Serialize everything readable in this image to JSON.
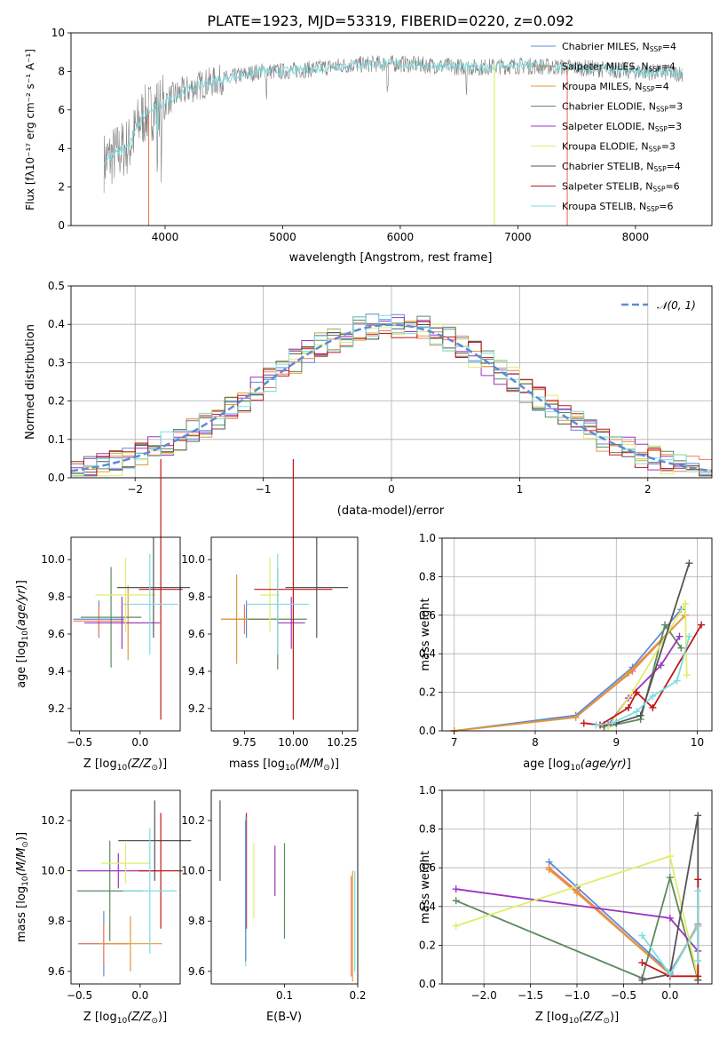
{
  "figure_title": "PLATE=1923, MJD=53319, FIBERID=0220, z=0.092",
  "colors": {
    "Chabrier MILES": "#5b8bd6",
    "Salpeter MILES": "#f07a5a",
    "Kroupa MILES": "#e09a3a",
    "Chabrier ELODIE": "#5e8a5e",
    "Salpeter ELODIE": "#9b34c0",
    "Kroupa ELODIE": "#e2ec6a",
    "Chabrier STELIB": "#555555",
    "Salpeter STELIB": "#c01818",
    "Kroupa STELIB": "#7edde0"
  },
  "chart_data": [
    {
      "id": "spectrum",
      "type": "line",
      "xlabel": "wavelength [Angstrom, rest frame]",
      "ylabel": "Flux [f_λ10^-17 erg cm^-2 s^-1 A^-1]",
      "xlim": [
        3200,
        8650
      ],
      "ylim": [
        0,
        10
      ],
      "xticks": [
        4000,
        5000,
        6000,
        7000,
        8000
      ],
      "yticks": [
        0,
        2,
        4,
        6,
        8,
        10
      ],
      "continuum": [
        [
          3480,
          3.3
        ],
        [
          3600,
          3.8
        ],
        [
          3700,
          4.2
        ],
        [
          3800,
          5.6
        ],
        [
          3900,
          6.0
        ],
        [
          4000,
          6.4
        ],
        [
          4100,
          6.8
        ],
        [
          4300,
          7.3
        ],
        [
          4500,
          7.6
        ],
        [
          4800,
          8.0
        ],
        [
          5000,
          8.0
        ],
        [
          5200,
          8.1
        ],
        [
          5500,
          8.3
        ],
        [
          5800,
          8.4
        ],
        [
          6000,
          8.4
        ],
        [
          6300,
          8.3
        ],
        [
          6600,
          8.2
        ],
        [
          7000,
          8.3
        ],
        [
          7500,
          8.2
        ],
        [
          8000,
          8.0
        ],
        [
          8400,
          7.9
        ]
      ],
      "legend": [
        {
          "name": "Chabrier MILES, N_SSP=4",
          "label_main": "Chabrier MILES, N",
          "sub": "SSP",
          "post": "=4"
        },
        {
          "name": "Salpeter MILES, N_SSP=4",
          "label_main": "Salpeter MILES, N",
          "sub": "SSP",
          "post": "=4"
        },
        {
          "name": "Kroupa MILES, N_SSP=4",
          "label_main": "Kroupa MILES, N",
          "sub": "SSP",
          "post": "=4"
        },
        {
          "name": "Chabrier ELODIE, N_SSP=3",
          "label_main": "Chabrier ELODIE, N",
          "sub": "SSP",
          "post": "=3"
        },
        {
          "name": "Salpeter ELODIE, N_SSP=3",
          "label_main": "Salpeter ELODIE, N",
          "sub": "SSP",
          "post": "=3"
        },
        {
          "name": "Kroupa ELODIE, N_SSP=3",
          "label_main": "Kroupa ELODIE, N",
          "sub": "SSP",
          "post": "=3"
        },
        {
          "name": "Chabrier STELIB, N_SSP=4",
          "label_main": "Chabrier STELIB, N",
          "sub": "SSP",
          "post": "=4"
        },
        {
          "name": "Salpeter STELIB, N_SSP=6",
          "label_main": "Salpeter STELIB, N",
          "sub": "SSP",
          "post": "=6"
        },
        {
          "name": "Kroupa STELIB, N_SSP=6",
          "label_main": "Kroupa STELIB, N",
          "sub": "SSP",
          "post": "=6"
        }
      ]
    },
    {
      "id": "residuals",
      "type": "bar",
      "xlabel": "(data-model)/error",
      "ylabel": "Normed distribution",
      "xlim": [
        -2.5,
        2.5
      ],
      "ylim": [
        0,
        0.5
      ],
      "xticks": [
        -2,
        -1,
        0,
        1,
        2
      ],
      "yticks": [
        0.0,
        0.1,
        0.2,
        0.3,
        0.4,
        0.5
      ],
      "bin_width": 0.1,
      "gaussian_legend": "N(0,1)"
    },
    {
      "id": "age_vs_Z",
      "type": "scatter",
      "xlabel": "Z [log10(Z/Z_sun)]",
      "ylabel": "age [log10(age/yr)]",
      "xlim": [
        -0.57,
        0.33
      ],
      "ylim": [
        9.08,
        10.12
      ],
      "xticks": [
        -0.5,
        0.0
      ],
      "yticks": [
        9.2,
        9.4,
        9.6,
        9.8,
        10.0
      ],
      "points": [
        {
          "model": "Chabrier MILES",
          "x": -0.34,
          "y": 9.68,
          "xerr": 0.21,
          "yerr": 0.1
        },
        {
          "model": "Salpeter MILES",
          "x": -0.34,
          "y": 9.67,
          "xerr": 0.21,
          "yerr": 0.08
        },
        {
          "model": "Kroupa MILES",
          "x": -0.1,
          "y": 9.66,
          "xerr": 0.27,
          "yerr": 0.2
        },
        {
          "model": "Chabrier ELODIE",
          "x": -0.24,
          "y": 9.69,
          "xerr": 0.25,
          "yerr": 0.27
        },
        {
          "model": "Salpeter ELODIE",
          "x": -0.15,
          "y": 9.66,
          "xerr": 0.31,
          "yerr": 0.14
        },
        {
          "model": "Kroupa ELODIE",
          "x": -0.12,
          "y": 9.81,
          "xerr": 0.25,
          "yerr": 0.2
        },
        {
          "model": "Chabrier STELIB",
          "x": 0.11,
          "y": 9.85,
          "xerr": 0.3,
          "yerr": 0.27
        },
        {
          "model": "Salpeter STELIB",
          "x": 0.17,
          "y": 9.84,
          "xerr": 0.18,
          "yerr": 0.7
        },
        {
          "model": "Kroupa STELIB",
          "x": 0.08,
          "y": 9.76,
          "xerr": 0.23,
          "yerr": 0.27
        }
      ]
    },
    {
      "id": "age_vs_mass",
      "type": "scatter",
      "xlabel": "mass [log10(M/M_sun)]",
      "ylabel": "",
      "xlim": [
        9.58,
        10.33
      ],
      "ylim": [
        9.08,
        10.12
      ],
      "xticks": [
        9.75,
        10.0,
        10.25
      ],
      "yticks": [
        9.2,
        9.4,
        9.6,
        9.8,
        10.0
      ],
      "points": [
        {
          "model": "Chabrier MILES",
          "x": 9.76,
          "y": 9.68,
          "xerr": 0.07,
          "yerr": 0.1
        },
        {
          "model": "Salpeter MILES",
          "x": 9.75,
          "y": 9.68,
          "xerr": 0.12,
          "yerr": 0.08
        },
        {
          "model": "Kroupa MILES",
          "x": 9.71,
          "y": 9.68,
          "xerr": 0.08,
          "yerr": 0.24
        },
        {
          "model": "Chabrier ELODIE",
          "x": 9.92,
          "y": 9.68,
          "xerr": 0.15,
          "yerr": 0.27
        },
        {
          "model": "Salpeter ELODIE",
          "x": 9.99,
          "y": 9.66,
          "xerr": 0.07,
          "yerr": 0.14
        },
        {
          "model": "Kroupa ELODIE",
          "x": 9.88,
          "y": 9.81,
          "xerr": 0.05,
          "yerr": 0.2
        },
        {
          "model": "Chabrier STELIB",
          "x": 10.12,
          "y": 9.85,
          "xerr": 0.16,
          "yerr": 0.27
        },
        {
          "model": "Salpeter STELIB",
          "x": 10.0,
          "y": 9.84,
          "xerr": 0.2,
          "yerr": 0.7
        },
        {
          "model": "Kroupa STELIB",
          "x": 9.92,
          "y": 9.76,
          "xerr": 0.16,
          "yerr": 0.27
        }
      ]
    },
    {
      "id": "weight_vs_age",
      "type": "line",
      "xlabel": "age [log10(age/yr)]",
      "ylabel": "mass weight",
      "xlim": [
        6.85,
        10.18
      ],
      "ylim": [
        0,
        1
      ],
      "xticks": [
        7,
        8,
        9,
        10
      ],
      "yticks": [
        0.0,
        0.2,
        0.4,
        0.6,
        0.8,
        1.0
      ],
      "series": [
        {
          "model": "Chabrier MILES",
          "x": [
            7.0,
            8.5,
            9.2,
            9.8
          ],
          "y": [
            0.0,
            0.08,
            0.33,
            0.63
          ]
        },
        {
          "model": "Salpeter MILES",
          "x": [
            7.0,
            8.5,
            9.2,
            9.85
          ],
          "y": [
            0.0,
            0.07,
            0.31,
            0.6
          ]
        },
        {
          "model": "Kroupa MILES",
          "x": [
            7.0,
            8.5,
            9.15,
            9.85
          ],
          "y": [
            0.0,
            0.07,
            0.3,
            0.6
          ]
        },
        {
          "model": "Chabrier ELODIE",
          "x": [
            8.85,
            9.3,
            9.6,
            9.8
          ],
          "y": [
            0.02,
            0.06,
            0.55,
            0.43
          ]
        },
        {
          "model": "Salpeter ELODIE",
          "x": [
            8.9,
            9.15,
            9.55,
            9.78
          ],
          "y": [
            0.03,
            0.17,
            0.34,
            0.49
          ]
        },
        {
          "model": "Kroupa ELODIE",
          "x": [
            8.9,
            9.2,
            9.85,
            9.87
          ],
          "y": [
            0.02,
            0.2,
            0.66,
            0.29
          ]
        },
        {
          "model": "Chabrier STELIB",
          "x": [
            8.85,
            9.0,
            9.3,
            9.9
          ],
          "y": [
            0.03,
            0.04,
            0.08,
            0.87
          ]
        },
        {
          "model": "Salpeter STELIB",
          "x": [
            8.6,
            8.8,
            9.15,
            9.25,
            9.45,
            10.05
          ],
          "y": [
            0.04,
            0.03,
            0.12,
            0.2,
            0.12,
            0.55
          ]
        },
        {
          "model": "Kroupa STELIB",
          "x": [
            8.75,
            8.95,
            9.25,
            9.45,
            9.75,
            9.9
          ],
          "y": [
            0.03,
            0.04,
            0.1,
            0.18,
            0.26,
            0.49
          ]
        }
      ]
    },
    {
      "id": "mass_vs_Z",
      "type": "scatter",
      "xlabel": "Z [log10(Z/Z_sun)]",
      "ylabel": "mass [log10(M/M_sun)]",
      "xlim": [
        -0.57,
        0.33
      ],
      "ylim": [
        9.55,
        10.32
      ],
      "xticks": [
        -0.5,
        0.0
      ],
      "yticks": [
        9.6,
        9.8,
        10.0,
        10.2
      ],
      "points": [
        {
          "model": "Chabrier MILES",
          "x": -0.3,
          "y": 9.71,
          "xerr": 0.21,
          "yerr": 0.13
        },
        {
          "model": "Salpeter MILES",
          "x": -0.3,
          "y": 9.71,
          "xerr": 0.21,
          "yerr": 0.08
        },
        {
          "model": "Kroupa MILES",
          "x": -0.08,
          "y": 9.71,
          "xerr": 0.26,
          "yerr": 0.11
        },
        {
          "model": "Chabrier ELODIE",
          "x": -0.25,
          "y": 9.92,
          "xerr": 0.27,
          "yerr": 0.2
        },
        {
          "model": "Salpeter ELODIE",
          "x": -0.18,
          "y": 10.0,
          "xerr": 0.34,
          "yerr": 0.07
        },
        {
          "model": "Kroupa ELODIE",
          "x": -0.12,
          "y": 10.03,
          "xerr": 0.2,
          "yerr": 0.08
        },
        {
          "model": "Chabrier STELIB",
          "x": 0.12,
          "y": 10.12,
          "xerr": 0.3,
          "yerr": 0.16
        },
        {
          "model": "Salpeter STELIB",
          "x": 0.17,
          "y": 10.0,
          "xerr": 0.18,
          "yerr": 0.23
        },
        {
          "model": "Kroupa STELIB",
          "x": 0.08,
          "y": 9.92,
          "xerr": 0.22,
          "yerr": 0.25
        }
      ]
    },
    {
      "id": "mass_vs_EBV",
      "type": "scatter",
      "xlabel": "E(B-V)",
      "ylabel": "",
      "xlim": [
        0.0,
        0.2
      ],
      "ylim": [
        9.55,
        10.32
      ],
      "xticks": [
        0.1,
        0.2
      ],
      "yticks": [
        9.6,
        9.8,
        10.0,
        10.2
      ],
      "points": [
        {
          "model": "Chabrier STELIB",
          "x": 0.012,
          "y": 10.12,
          "yerr": 0.16
        },
        {
          "model": "Salpeter STELIB",
          "x": 0.048,
          "y": 10.0,
          "yerr": 0.23
        },
        {
          "model": "Kroupa STELIB",
          "x": 0.047,
          "y": 9.92,
          "yerr": 0.3
        },
        {
          "model": "Chabrier MILES",
          "x": 0.047,
          "y": 9.92,
          "yerr": 0.28
        },
        {
          "model": "Salpeter ELODIE",
          "x": 0.087,
          "y": 10.0,
          "yerr": 0.1
        },
        {
          "model": "Kroupa ELODIE",
          "x": 0.058,
          "y": 9.96,
          "yerr": 0.15
        },
        {
          "model": "Chabrier ELODIE",
          "x": 0.1,
          "y": 9.92,
          "yerr": 0.19
        },
        {
          "model": "Salpeter MILES",
          "x": 0.191,
          "y": 9.78,
          "yerr": 0.2
        },
        {
          "model": "Kroupa MILES",
          "x": 0.193,
          "y": 9.78,
          "yerr": 0.22
        },
        {
          "model": "Kroupa STELIB",
          "x": 0.196,
          "y": 9.8,
          "yerr": 0.2
        }
      ]
    },
    {
      "id": "weight_vs_Z",
      "type": "line",
      "xlabel": "Z [log10(Z/Z_sun)]",
      "ylabel": "mass weight",
      "xlim": [
        -2.45,
        0.45
      ],
      "ylim": [
        0,
        1
      ],
      "xticks": [
        -2.0,
        -1.5,
        -1.0,
        -0.5,
        0.0
      ],
      "yticks": [
        0.0,
        0.2,
        0.4,
        0.6,
        0.8,
        1.0
      ],
      "series": [
        {
          "model": "Chabrier MILES",
          "x": [
            -1.3,
            -1.0,
            0.0,
            0.3
          ],
          "y": [
            0.63,
            0.5,
            0.06,
            0.3
          ]
        },
        {
          "model": "Salpeter MILES",
          "x": [
            -1.3,
            -1.0,
            0.0,
            0.3
          ],
          "y": [
            0.6,
            0.48,
            0.05,
            0.31
          ]
        },
        {
          "model": "Kroupa MILES",
          "x": [
            -1.3,
            -1.0,
            0.0,
            0.3
          ],
          "y": [
            0.59,
            0.47,
            0.05,
            0.3
          ]
        },
        {
          "model": "Chabrier ELODIE",
          "x": [
            -2.3,
            -0.3,
            0.0,
            0.3
          ],
          "y": [
            0.43,
            0.03,
            0.55,
            0.02
          ]
        },
        {
          "model": "Salpeter ELODIE",
          "x": [
            -2.3,
            0.0,
            0.3
          ],
          "y": [
            0.49,
            0.34,
            0.17
          ]
        },
        {
          "model": "Kroupa ELODIE",
          "x": [
            -2.3,
            0.0,
            0.3
          ],
          "y": [
            0.3,
            0.66,
            0.03
          ]
        },
        {
          "model": "Chabrier STELIB",
          "x": [
            -0.3,
            0.0,
            0.3,
            0.3
          ],
          "y": [
            0.02,
            0.05,
            0.87,
            0.02
          ]
        },
        {
          "model": "Salpeter STELIB",
          "x": [
            -0.3,
            0.0,
            0.3,
            0.3
          ],
          "y": [
            0.11,
            0.04,
            0.04,
            0.54
          ]
        },
        {
          "model": "Kroupa STELIB",
          "x": [
            -0.3,
            0.0,
            0.3,
            0.3,
            0.3
          ],
          "y": [
            0.25,
            0.05,
            0.3,
            0.48,
            0.12
          ]
        }
      ]
    }
  ]
}
